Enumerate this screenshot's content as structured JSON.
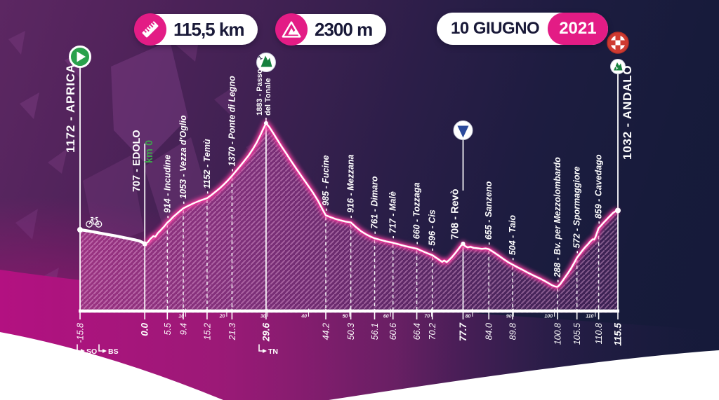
{
  "header": {
    "distance": "115,5 km",
    "elevation_gain": "2300 m",
    "date": "10 GIUGNO",
    "year": "2021"
  },
  "annotations": {
    "provinces": [
      {
        "label": "SO"
      },
      {
        "label": "BS"
      },
      {
        "label": "TN"
      }
    ]
  },
  "axis": {
    "unit": "km",
    "decade_ticks": [
      10,
      20,
      30,
      40,
      50,
      60,
      70,
      80,
      90,
      100,
      110
    ]
  },
  "colors": {
    "accent_pink": "#e31c85",
    "magenta_wave": "#b01280",
    "background_purple": "#5c2762",
    "background_navy": "#161a39",
    "start_green": "#2aa14c",
    "summit_green": "#15803d",
    "sprint_blue": "#2b4a9b",
    "finish_red": "#cf3b31",
    "km0_green": "#3fa14d",
    "navy_text": "#191938"
  },
  "chart_data": {
    "type": "area",
    "x_unit": "km",
    "y_unit": "m",
    "x_range": [
      -15.8,
      115.5
    ],
    "neutral_section_end_km": 0,
    "waypoints": [
      {
        "km": -15.8,
        "elevation": 1172,
        "name": "Aprica",
        "label": "1172 - APRICA",
        "axis_label": "-15.8",
        "type": "start"
      },
      {
        "km": 0.0,
        "elevation": 707,
        "name": "Edolo",
        "label": "707 - EDOLO",
        "extra_label": "km 0",
        "axis_label": "0.0",
        "type": "km0",
        "axis_bold": true
      },
      {
        "km": 5.5,
        "elevation": 914,
        "name": "Incudine",
        "label": "- 914 - Incudine",
        "axis_label": "5.5",
        "type": "minor"
      },
      {
        "km": 9.4,
        "elevation": 1053,
        "name": "Vezza d'Oglio",
        "label": "- 1053 - Vezza d'Oglio",
        "axis_label": "9.4",
        "type": "minor"
      },
      {
        "km": 15.2,
        "elevation": 1152,
        "name": "Temù",
        "label": "- 1152 - Temù",
        "axis_label": "15.2",
        "type": "minor"
      },
      {
        "km": 21.3,
        "elevation": 1370,
        "name": "Ponte di Legno",
        "label": "- 1370 - Ponte di Legno",
        "axis_label": "21.3",
        "type": "minor"
      },
      {
        "km": 29.6,
        "elevation": 1883,
        "name": "Passo del Tonale",
        "label_lines": [
          "1883 - Passo",
          "del Tonale"
        ],
        "axis_label": "29.6",
        "type": "summit",
        "category": "1",
        "axis_bold": true
      },
      {
        "km": 44.2,
        "elevation": 985,
        "name": "Fucine",
        "label": "- 985 - Fucine",
        "axis_label": "44.2",
        "type": "minor"
      },
      {
        "km": 50.3,
        "elevation": 916,
        "name": "Mezzana",
        "label": "- 916 - Mezzana",
        "axis_label": "50.3",
        "type": "minor"
      },
      {
        "km": 56.1,
        "elevation": 761,
        "name": "Dimaro",
        "label": "- 761 - Dimaro",
        "axis_label": "56.1",
        "type": "minor"
      },
      {
        "km": 60.6,
        "elevation": 717,
        "name": "Malè",
        "label": "- 717 - Malè",
        "axis_label": "60.6",
        "type": "minor"
      },
      {
        "km": 66.4,
        "elevation": 660,
        "name": "Tozzaga",
        "label": "- 660 - Tozzaga",
        "axis_label": "66.4",
        "type": "minor"
      },
      {
        "km": 70.2,
        "elevation": 596,
        "name": "Cis",
        "label": "- 596 - Cis",
        "axis_label": "70.2",
        "type": "minor"
      },
      {
        "km": 77.7,
        "elevation": 708,
        "name": "Revò",
        "label": "708 - Revò",
        "axis_label": "77.7",
        "type": "sprint",
        "axis_bold": true
      },
      {
        "km": 84.0,
        "elevation": 655,
        "name": "Sanzeno",
        "label": "- 655 - Sanzeno",
        "axis_label": "84.0",
        "type": "minor"
      },
      {
        "km": 89.8,
        "elevation": 504,
        "name": "Taio",
        "label": "- 504 - Taio",
        "axis_label": "89.8",
        "type": "minor"
      },
      {
        "km": 100.8,
        "elevation": 288,
        "name": "Bv. per Mezzolombardo",
        "label": "- 288 - Bv. per Mezzolombardo",
        "axis_label": "100.8",
        "type": "minor"
      },
      {
        "km": 105.5,
        "elevation": 572,
        "name": "Spormaggiore",
        "label": "- 572 - Spormaggiore",
        "axis_label": "105.5",
        "type": "minor"
      },
      {
        "km": 110.8,
        "elevation": 859,
        "name": "Cavedago",
        "label": "- 859 - Cavedago",
        "axis_label": "110.8",
        "type": "minor"
      },
      {
        "km": 115.5,
        "elevation": 1032,
        "name": "Andalo",
        "label": "1032 - ANDALO",
        "axis_label": "115.5",
        "type": "finish",
        "category": "1",
        "axis_bold": true
      }
    ],
    "profile_points": [
      [
        -15.8,
        1172
      ],
      [
        -14.5,
        1150
      ],
      [
        -13.2,
        1118
      ],
      [
        -12,
        1088
      ],
      [
        -10.8,
        1058
      ],
      [
        -9.6,
        1028
      ],
      [
        -8.4,
        1000
      ],
      [
        -7.2,
        970
      ],
      [
        -6,
        938
      ],
      [
        -4.8,
        905
      ],
      [
        -3.6,
        872
      ],
      [
        -2.4,
        838
      ],
      [
        -1.2,
        795
      ],
      [
        -0.4,
        742
      ],
      [
        0,
        707
      ],
      [
        0.7,
        722
      ],
      [
        1.4,
        756
      ],
      [
        2.1,
        782
      ],
      [
        2.6,
        776
      ],
      [
        3.2,
        812
      ],
      [
        3.9,
        840
      ],
      [
        4.7,
        874
      ],
      [
        5.5,
        914
      ],
      [
        6.2,
        938
      ],
      [
        7,
        972
      ],
      [
        7.7,
        996
      ],
      [
        8.5,
        1024
      ],
      [
        9.4,
        1053
      ],
      [
        10.3,
        1072
      ],
      [
        11.2,
        1089
      ],
      [
        12.1,
        1106
      ],
      [
        13.1,
        1122
      ],
      [
        14.1,
        1137
      ],
      [
        15.2,
        1152
      ],
      [
        16.2,
        1181
      ],
      [
        17.3,
        1216
      ],
      [
        18.4,
        1252
      ],
      [
        19.4,
        1290
      ],
      [
        20.3,
        1326
      ],
      [
        21.3,
        1370
      ],
      [
        22.3,
        1418
      ],
      [
        23.3,
        1466
      ],
      [
        24.3,
        1516
      ],
      [
        25.3,
        1566
      ],
      [
        26.3,
        1626
      ],
      [
        27.3,
        1692
      ],
      [
        28.1,
        1756
      ],
      [
        28.9,
        1826
      ],
      [
        29.6,
        1883
      ],
      [
        30.4,
        1846
      ],
      [
        31.3,
        1790
      ],
      [
        32.3,
        1726
      ],
      [
        33.4,
        1656
      ],
      [
        34.5,
        1590
      ],
      [
        35.7,
        1516
      ],
      [
        37,
        1440
      ],
      [
        38.3,
        1364
      ],
      [
        39.6,
        1290
      ],
      [
        41,
        1210
      ],
      [
        42.3,
        1126
      ],
      [
        43.3,
        1050
      ],
      [
        44.2,
        985
      ],
      [
        45.3,
        968
      ],
      [
        46.5,
        950
      ],
      [
        47.8,
        936
      ],
      [
        49,
        924
      ],
      [
        50.3,
        916
      ],
      [
        51.5,
        872
      ],
      [
        52.8,
        830
      ],
      [
        54.2,
        796
      ],
      [
        55.2,
        776
      ],
      [
        56.1,
        761
      ],
      [
        57.5,
        746
      ],
      [
        59,
        730
      ],
      [
        60.6,
        717
      ],
      [
        62,
        702
      ],
      [
        63.5,
        686
      ],
      [
        65,
        672
      ],
      [
        66.4,
        660
      ],
      [
        67.5,
        641
      ],
      [
        68.8,
        618
      ],
      [
        70.2,
        596
      ],
      [
        71.2,
        570
      ],
      [
        72,
        548
      ],
      [
        72.6,
        531
      ],
      [
        73.1,
        545
      ],
      [
        73.7,
        528
      ],
      [
        74.3,
        549
      ],
      [
        75,
        578
      ],
      [
        75.8,
        616
      ],
      [
        76.6,
        658
      ],
      [
        77.2,
        690
      ],
      [
        77.7,
        708
      ],
      [
        78.2,
        685
      ],
      [
        78.8,
        672
      ],
      [
        79.5,
        678
      ],
      [
        80.3,
        668
      ],
      [
        81.3,
        664
      ],
      [
        82.3,
        658
      ],
      [
        83.2,
        662
      ],
      [
        84,
        655
      ],
      [
        85.2,
        625
      ],
      [
        86.4,
        592
      ],
      [
        87.6,
        558
      ],
      [
        88.7,
        528
      ],
      [
        89.8,
        504
      ],
      [
        91,
        478
      ],
      [
        92.3,
        452
      ],
      [
        93.6,
        424
      ],
      [
        95,
        396
      ],
      [
        96.3,
        372
      ],
      [
        97.5,
        348
      ],
      [
        98.5,
        325
      ],
      [
        99.3,
        306
      ],
      [
        100,
        294
      ],
      [
        100.5,
        288
      ],
      [
        100.8,
        288
      ],
      [
        101.4,
        312
      ],
      [
        102,
        346
      ],
      [
        102.7,
        386
      ],
      [
        103.4,
        426
      ],
      [
        104.1,
        470
      ],
      [
        104.8,
        520
      ],
      [
        105.5,
        572
      ],
      [
        106.2,
        608
      ],
      [
        106.9,
        645
      ],
      [
        107.6,
        678
      ],
      [
        108.2,
        703
      ],
      [
        108.7,
        727
      ],
      [
        109.1,
        743
      ],
      [
        109.4,
        753
      ],
      [
        109.7,
        748
      ],
      [
        110,
        769
      ],
      [
        110.4,
        816
      ],
      [
        110.8,
        859
      ],
      [
        111.4,
        886
      ],
      [
        112,
        913
      ],
      [
        112.6,
        938
      ],
      [
        113.2,
        963
      ],
      [
        113.8,
        988
      ],
      [
        114.3,
        1008
      ],
      [
        114.8,
        1022
      ],
      [
        115.2,
        1030
      ],
      [
        115.5,
        1032
      ]
    ]
  }
}
